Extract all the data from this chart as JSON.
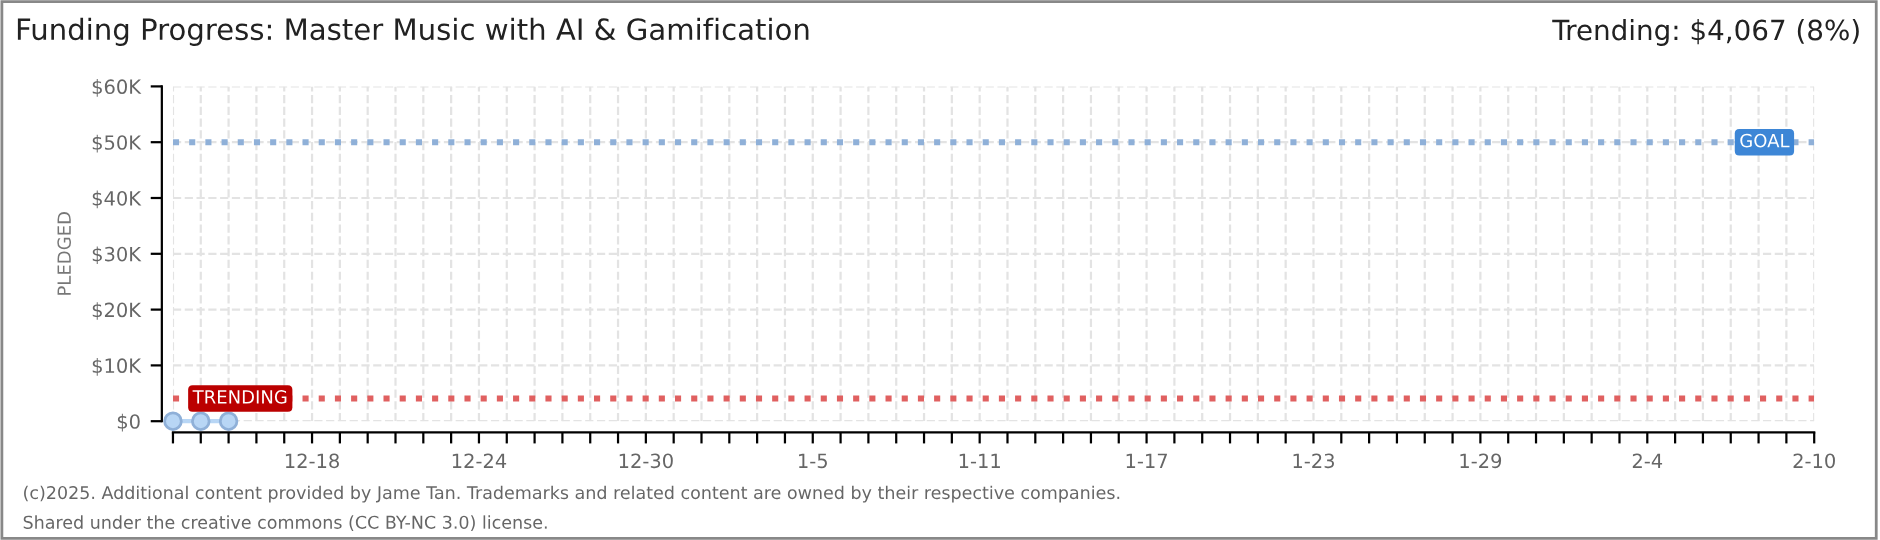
{
  "chart_data": {
    "type": "line",
    "title": "Funding Progress: Master Music with AI & Gamification",
    "ylabel": "PLEDGED",
    "x": [
      "2024-12-13",
      "2024-12-14",
      "2024-12-15"
    ],
    "series": [
      {
        "color": "#b8d6f5",
        "values": [
          0,
          0,
          0
        ]
      }
    ],
    "marker": "circle",
    "line_style": "solid",
    "xlim": [
      "2024-12-13",
      "2025-02-10"
    ],
    "xticks": [
      {
        "value": "2024-12-13",
        "label": null
      },
      {
        "value": "2024-12-14",
        "label": null
      },
      {
        "value": "2024-12-15",
        "label": null
      },
      {
        "value": "2024-12-16",
        "label": null
      },
      {
        "value": "2024-12-17",
        "label": null
      },
      {
        "value": "2024-12-18",
        "label": "12-18"
      },
      {
        "value": "2024-12-19",
        "label": null
      },
      {
        "value": "2024-12-20",
        "label": null
      },
      {
        "value": "2024-12-21",
        "label": null
      },
      {
        "value": "2024-12-22",
        "label": null
      },
      {
        "value": "2024-12-23",
        "label": null
      },
      {
        "value": "2024-12-24",
        "label": "12-24"
      },
      {
        "value": "2024-12-25",
        "label": null
      },
      {
        "value": "2024-12-26",
        "label": null
      },
      {
        "value": "2024-12-27",
        "label": null
      },
      {
        "value": "2024-12-28",
        "label": null
      },
      {
        "value": "2024-12-29",
        "label": null
      },
      {
        "value": "2024-12-30",
        "label": "12-30"
      },
      {
        "value": "2024-12-31",
        "label": null
      },
      {
        "value": "2025-01-01",
        "label": null
      },
      {
        "value": "2025-01-02",
        "label": null
      },
      {
        "value": "2025-01-03",
        "label": null
      },
      {
        "value": "2025-01-04",
        "label": null
      },
      {
        "value": "2025-01-05",
        "label": "1-5"
      },
      {
        "value": "2025-01-06",
        "label": null
      },
      {
        "value": "2025-01-07",
        "label": null
      },
      {
        "value": "2025-01-08",
        "label": null
      },
      {
        "value": "2025-01-09",
        "label": null
      },
      {
        "value": "2025-01-10",
        "label": null
      },
      {
        "value": "2025-01-11",
        "label": "1-11"
      },
      {
        "value": "2025-01-12",
        "label": null
      },
      {
        "value": "2025-01-13",
        "label": null
      },
      {
        "value": "2025-01-14",
        "label": null
      },
      {
        "value": "2025-01-15",
        "label": null
      },
      {
        "value": "2025-01-16",
        "label": null
      },
      {
        "value": "2025-01-17",
        "label": "1-17"
      },
      {
        "value": "2025-01-18",
        "label": null
      },
      {
        "value": "2025-01-19",
        "label": null
      },
      {
        "value": "2025-01-20",
        "label": null
      },
      {
        "value": "2025-01-21",
        "label": null
      },
      {
        "value": "2025-01-22",
        "label": null
      },
      {
        "value": "2025-01-23",
        "label": "1-23"
      },
      {
        "value": "2025-01-24",
        "label": null
      },
      {
        "value": "2025-01-25",
        "label": null
      },
      {
        "value": "2025-01-26",
        "label": null
      },
      {
        "value": "2025-01-27",
        "label": null
      },
      {
        "value": "2025-01-28",
        "label": null
      },
      {
        "value": "2025-01-29",
        "label": "1-29"
      },
      {
        "value": "2025-01-30",
        "label": null
      },
      {
        "value": "2025-01-31",
        "label": null
      },
      {
        "value": "2025-02-01",
        "label": null
      },
      {
        "value": "2025-02-02",
        "label": null
      },
      {
        "value": "2025-02-03",
        "label": null
      },
      {
        "value": "2025-02-04",
        "label": "2-4"
      },
      {
        "value": "2025-02-05",
        "label": null
      },
      {
        "value": "2025-02-06",
        "label": null
      },
      {
        "value": "2025-02-07",
        "label": null
      },
      {
        "value": "2025-02-08",
        "label": null
      },
      {
        "value": "2025-02-09",
        "label": null
      },
      {
        "value": "2025-02-10",
        "label": "2-10"
      }
    ],
    "ylim": [
      0,
      60000
    ],
    "yticks": [
      {
        "value": 0,
        "label": "$0"
      },
      {
        "value": 10000,
        "label": "$10K"
      },
      {
        "value": 20000,
        "label": "$20K"
      },
      {
        "value": 30000,
        "label": "$30K"
      },
      {
        "value": 40000,
        "label": "$40K"
      },
      {
        "value": 50000,
        "label": "$50K"
      },
      {
        "value": 60000,
        "label": "$60K"
      }
    ],
    "grid": true,
    "ref_lines": [
      {
        "axis": "y",
        "value": 50000,
        "label": "GOAL",
        "color": "#8fb0d8",
        "line_style": "dotted"
      },
      {
        "axis": "y",
        "value": 4067,
        "label": "TRENDING",
        "color": "#e06060",
        "line_style": "dotted"
      }
    ],
    "annotations": [
      "Trending: $4,067 (8%)",
      "(c)2025. Additional content provided by Jame Tan. Trademarks and related content are owned by their respective companies.",
      "Shared under the creative commons (CC BY-NC 3.0) license."
    ]
  }
}
